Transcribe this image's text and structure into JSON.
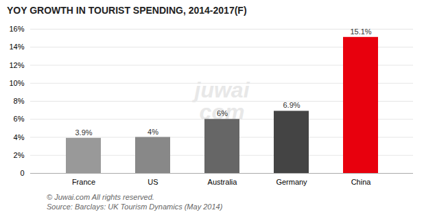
{
  "chart_data": {
    "type": "bar",
    "title": "YOY GROWTH IN TOURIST SPENDING, 2014-2017(F)",
    "categories": [
      "France",
      "US",
      "Australia",
      "Germany",
      "China"
    ],
    "values": [
      3.9,
      4.0,
      6.0,
      6.9,
      15.1
    ],
    "value_labels": [
      "3.9%",
      "4%",
      "6%",
      "6.9%",
      "15.1%"
    ],
    "colors": [
      "#999999",
      "#888888",
      "#666666",
      "#444444",
      "#e8000d"
    ],
    "ylim": [
      0,
      16
    ],
    "yticks": [
      0,
      {
        "value": 2,
        "label": "2%"
      },
      {
        "value": 4,
        "label": "4%"
      },
      {
        "value": 6,
        "label": "6%"
      },
      {
        "value": 8,
        "label": "8%"
      },
      {
        "value": 10,
        "label": "10%"
      },
      {
        "value": 12,
        "label": "12%"
      },
      {
        "value": 14,
        "label": "14%"
      },
      {
        "value": 16,
        "label": "16%"
      }
    ],
    "grid": true,
    "data_labels": true,
    "watermark": "juwai\ncom",
    "annotations": [
      "© Juwai.com All rights reserved.",
      "Source: Barclays: UK Tourism Dynamics (May 2014)"
    ]
  }
}
